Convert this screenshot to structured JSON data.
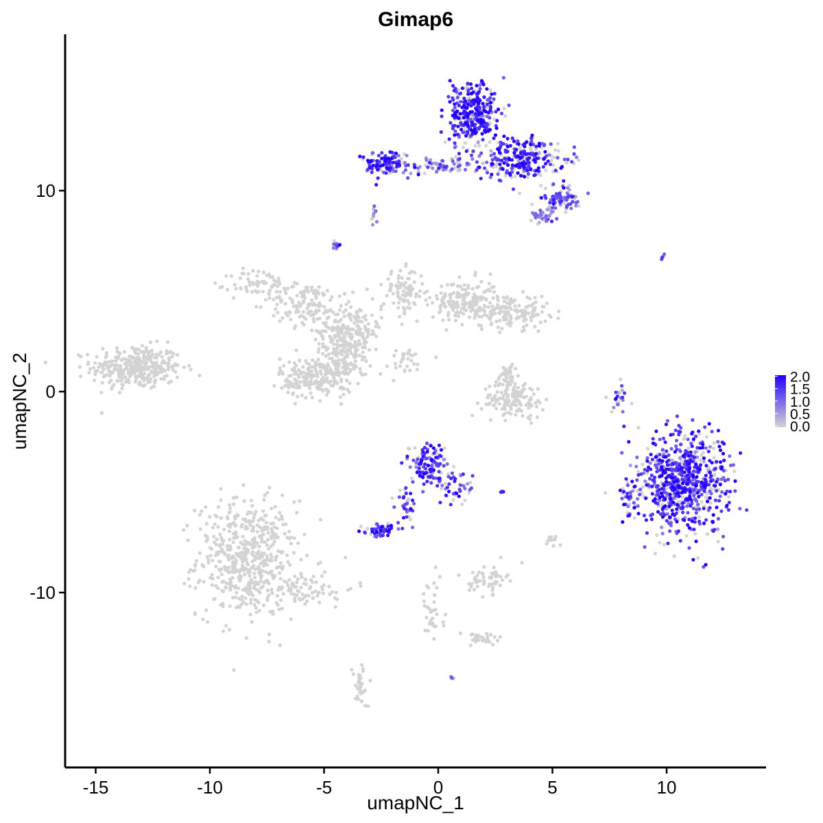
{
  "chart_data": {
    "type": "scatter",
    "title": "Gimap6",
    "xlabel": "umapNC_1",
    "ylabel": "umapNC_2",
    "xlim": [
      -16.5,
      14.5
    ],
    "ylim": [
      -18.5,
      17.9
    ],
    "x_ticks": [
      -15,
      -10,
      -5,
      0,
      5,
      10
    ],
    "x_tick_labels": [
      "-15",
      "-10",
      "-5",
      "0",
      "5",
      "10"
    ],
    "y_ticks": [
      -10,
      0,
      10
    ],
    "y_tick_labels": [
      "-10",
      "0",
      "10"
    ],
    "grid": false,
    "legend": {
      "placement": "right",
      "type": "colorbar",
      "labels": [
        "2.0",
        "1.5",
        "1.0",
        "0.5",
        "0.0"
      ],
      "min": 0,
      "max": 2.0,
      "color_low": "#d3d3d3",
      "color_high": "#2200ff"
    },
    "clusters": [
      {
        "cx": -13.2,
        "cy": 1.2,
        "sx": 1.1,
        "sy": 0.6,
        "n": 340,
        "expr": 0.0
      },
      {
        "cx": -8.4,
        "cy": -8.3,
        "sx": 1.2,
        "sy": 1.6,
        "n": 520,
        "expr": 0.0
      },
      {
        "cx": -6.0,
        "cy": -9.8,
        "sx": 1.3,
        "sy": 0.5,
        "n": 90,
        "expr": 0.0
      },
      {
        "cx": -7.8,
        "cy": 5.3,
        "sx": 0.7,
        "sy": 0.45,
        "n": 70,
        "expr": 0.0
      },
      {
        "cx": -5.8,
        "cy": 4.3,
        "sx": 0.9,
        "sy": 0.6,
        "n": 110,
        "expr": 0.0
      },
      {
        "cx": -3.9,
        "cy": 3.0,
        "sx": 0.8,
        "sy": 0.9,
        "n": 210,
        "expr": 0.0
      },
      {
        "cx": -1.5,
        "cy": 5.0,
        "sx": 0.5,
        "sy": 0.6,
        "n": 90,
        "expr": 0.0
      },
      {
        "cx": 1.2,
        "cy": 4.5,
        "sx": 0.8,
        "sy": 0.6,
        "n": 170,
        "expr": 0.0
      },
      {
        "cx": 3.2,
        "cy": 4.0,
        "sx": 0.9,
        "sy": 0.45,
        "n": 140,
        "expr": 0.0
      },
      {
        "cx": -5.3,
        "cy": 0.7,
        "sx": 0.9,
        "sy": 0.55,
        "n": 230,
        "expr": 0.0
      },
      {
        "cx": -4.2,
        "cy": 2.0,
        "sx": 0.5,
        "sy": 0.7,
        "n": 100,
        "expr": 0.0
      },
      {
        "cx": -1.6,
        "cy": 1.5,
        "sx": 0.6,
        "sy": 0.4,
        "n": 30,
        "expr": 0.0
      },
      {
        "cx": 3.3,
        "cy": -0.4,
        "sx": 0.75,
        "sy": 0.5,
        "n": 130,
        "expr": 0.0
      },
      {
        "cx": 3.1,
        "cy": 0.7,
        "sx": 0.3,
        "sy": 0.4,
        "n": 40,
        "expr": 0.0
      },
      {
        "cx": 2.2,
        "cy": -9.3,
        "sx": 0.45,
        "sy": 0.4,
        "n": 55,
        "expr": 0.0
      },
      {
        "cx": -0.3,
        "cy": -11.0,
        "sx": 0.3,
        "sy": 0.9,
        "n": 35,
        "expr": 0.0
      },
      {
        "cx": 1.8,
        "cy": -12.3,
        "sx": 0.6,
        "sy": 0.2,
        "n": 30,
        "expr": 0.0
      },
      {
        "cx": -3.4,
        "cy": -14.7,
        "sx": 0.2,
        "sy": 0.6,
        "n": 35,
        "expr": 0.0
      },
      {
        "cx": 5.0,
        "cy": -7.4,
        "sx": 0.15,
        "sy": 0.2,
        "n": 12,
        "expr": 0.0
      },
      {
        "cx": 7.9,
        "cy": -0.4,
        "sx": 0.2,
        "sy": 0.6,
        "n": 25,
        "expr": 0.9
      },
      {
        "cx": 10.7,
        "cy": -4.5,
        "sx": 1.1,
        "sy": 1.3,
        "n": 720,
        "expr": 1.5
      },
      {
        "cx": 8.4,
        "cy": -5.5,
        "sx": 0.25,
        "sy": 0.6,
        "n": 35,
        "expr": 1.4
      },
      {
        "cx": 1.5,
        "cy": 13.8,
        "sx": 0.6,
        "sy": 0.9,
        "n": 330,
        "expr": 1.6
      },
      {
        "cx": 3.7,
        "cy": 11.6,
        "sx": 1.0,
        "sy": 0.6,
        "n": 260,
        "expr": 1.5
      },
      {
        "cx": 5.4,
        "cy": 9.6,
        "sx": 0.5,
        "sy": 0.3,
        "n": 80,
        "expr": 1.0
      },
      {
        "cx": 4.6,
        "cy": 8.8,
        "sx": 0.3,
        "sy": 0.25,
        "n": 35,
        "expr": 1.0
      },
      {
        "cx": -2.4,
        "cy": 11.3,
        "sx": 0.6,
        "sy": 0.35,
        "n": 110,
        "expr": 1.5
      },
      {
        "cx": 0.1,
        "cy": 11.2,
        "sx": 1.0,
        "sy": 0.2,
        "n": 75,
        "expr": 1.0
      },
      {
        "cx": -4.5,
        "cy": 7.3,
        "sx": 0.12,
        "sy": 0.15,
        "n": 14,
        "expr": 1.0
      },
      {
        "cx": -2.8,
        "cy": 8.7,
        "sx": 0.1,
        "sy": 0.3,
        "n": 10,
        "expr": 0.8
      },
      {
        "cx": -0.4,
        "cy": -3.6,
        "sx": 0.5,
        "sy": 0.6,
        "n": 130,
        "expr": 1.3
      },
      {
        "cx": 0.8,
        "cy": -4.8,
        "sx": 0.45,
        "sy": 0.55,
        "n": 40,
        "expr": 1.3
      },
      {
        "cx": -1.4,
        "cy": -5.8,
        "sx": 0.2,
        "sy": 0.6,
        "n": 30,
        "expr": 1.3
      },
      {
        "cx": -2.6,
        "cy": -6.9,
        "sx": 0.35,
        "sy": 0.18,
        "n": 50,
        "expr": 1.6
      },
      {
        "cx": 0.6,
        "cy": -14.2,
        "sx": 0.05,
        "sy": 0.05,
        "n": 4,
        "expr": 1.2
      },
      {
        "cx": 2.8,
        "cy": -5.0,
        "sx": 0.1,
        "sy": 0.05,
        "n": 4,
        "expr": 1.2
      },
      {
        "cx": 9.9,
        "cy": 6.7,
        "sx": 0.1,
        "sy": 0.1,
        "n": 4,
        "expr": 1.2
      }
    ]
  }
}
